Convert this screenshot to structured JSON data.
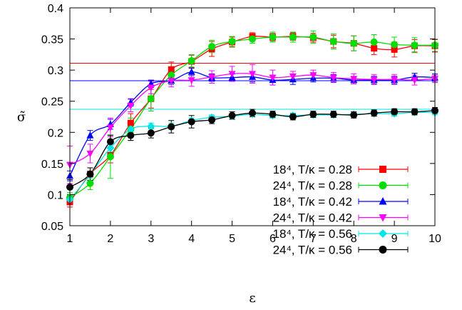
{
  "chart_data": {
    "type": "scatter",
    "xlabel": "ε",
    "ylabel": "σ̃",
    "xlim": [
      1,
      10
    ],
    "ylim": [
      0.05,
      0.4
    ],
    "x_ticks": [
      "1",
      "2",
      "3",
      "4",
      "5",
      "6",
      "7",
      "8",
      "9",
      "10"
    ],
    "y_ticks": [
      "0.05",
      "0.1",
      "0.15",
      "0.2",
      "0.25",
      "0.3",
      "0.35",
      "0.4"
    ],
    "legend_position": "bottom-right",
    "grid": false,
    "horizontal_lines": [
      {
        "y": 0.311,
        "color": "#ff0000"
      },
      {
        "y": 0.283,
        "color": "#0000ff"
      },
      {
        "y": 0.237,
        "color": "#00e5e5"
      }
    ],
    "series": [
      {
        "name": "18⁴, T/κ = 0.28",
        "color": "#ff0000",
        "marker": "square",
        "x": [
          1,
          1.5,
          2,
          2.5,
          3,
          3.5,
          4,
          4.5,
          5,
          5.5,
          6,
          6.5,
          7,
          7.5,
          8,
          8.5,
          9,
          9.5,
          10
        ],
        "y": [
          0.088,
          0.133,
          0.163,
          0.215,
          0.254,
          0.301,
          0.314,
          0.334,
          0.345,
          0.354,
          0.353,
          0.354,
          0.352,
          0.346,
          0.343,
          0.335,
          0.333,
          0.339,
          0.339
        ],
        "err": [
          0.008,
          0.01,
          0.012,
          0.015,
          0.015,
          0.012,
          0.01,
          0.012,
          0.008,
          0.006,
          0.006,
          0.006,
          0.007,
          0.01,
          0.012,
          0.01,
          0.012,
          0.01,
          0.01
        ]
      },
      {
        "name": "24⁴, T/κ = 0.28",
        "color": "#00dd00",
        "marker": "circle",
        "x": [
          1,
          1.5,
          2,
          2.5,
          3,
          3.5,
          4,
          4.5,
          5,
          5.5,
          6,
          6.5,
          7,
          7.5,
          8,
          8.5,
          9,
          9.5,
          10
        ],
        "y": [
          0.095,
          0.118,
          0.161,
          0.205,
          0.254,
          0.292,
          0.315,
          0.338,
          0.346,
          0.35,
          0.353,
          0.353,
          0.353,
          0.346,
          0.343,
          0.345,
          0.341,
          0.34,
          0.34
        ],
        "err": [
          0.008,
          0.01,
          0.035,
          0.018,
          0.02,
          0.012,
          0.01,
          0.01,
          0.008,
          0.007,
          0.008,
          0.008,
          0.01,
          0.012,
          0.012,
          0.012,
          0.012,
          0.012,
          0.01
        ]
      },
      {
        "name": "18⁴, T/κ = 0.42",
        "color": "#0000ff",
        "marker": "triangle-up",
        "x": [
          1,
          1.5,
          2,
          2.5,
          3,
          3.5,
          4,
          4.5,
          5,
          5.5,
          6,
          6.5,
          7,
          7.5,
          8,
          8.5,
          9,
          9.5,
          10
        ],
        "y": [
          0.13,
          0.195,
          0.213,
          0.248,
          0.278,
          0.283,
          0.297,
          0.288,
          0.288,
          0.289,
          0.284,
          0.285,
          0.287,
          0.287,
          0.284,
          0.284,
          0.284,
          0.289,
          0.288
        ],
        "err": [
          0.008,
          0.008,
          0.008,
          0.006,
          0.006,
          0.006,
          0.006,
          0.006,
          0.006,
          0.008,
          0.008,
          0.008,
          0.006,
          0.006,
          0.006,
          0.006,
          0.006,
          0.006,
          0.006
        ]
      },
      {
        "name": "24⁴, T/κ = 0.42",
        "color": "#ff00ff",
        "marker": "triangle-down",
        "x": [
          1,
          1.5,
          2,
          2.5,
          3,
          3.5,
          4,
          4.5,
          5,
          5.5,
          6,
          6.5,
          7,
          7.5,
          8,
          8.5,
          9,
          9.5,
          10
        ],
        "y": [
          0.148,
          0.166,
          0.208,
          0.243,
          0.272,
          0.283,
          0.284,
          0.289,
          0.294,
          0.294,
          0.288,
          0.29,
          0.292,
          0.288,
          0.286,
          0.285,
          0.285,
          0.284,
          0.286
        ],
        "err": [
          0.03,
          0.015,
          0.015,
          0.01,
          0.01,
          0.01,
          0.01,
          0.01,
          0.012,
          0.015,
          0.012,
          0.008,
          0.008,
          0.008,
          0.008,
          0.008,
          0.008,
          0.008,
          0.006
        ]
      },
      {
        "name": "18⁴, T/κ = 0.56",
        "color": "#00e5e5",
        "marker": "diamond",
        "x": [
          1,
          1.5,
          2,
          2.5,
          3,
          3.5,
          4,
          4.5,
          5,
          5.5,
          6,
          6.5,
          7,
          7.5,
          8,
          8.5,
          9,
          9.5,
          10
        ],
        "y": [
          0.092,
          0.132,
          0.175,
          0.205,
          0.21,
          0.21,
          0.219,
          0.224,
          0.226,
          0.229,
          0.227,
          0.227,
          0.228,
          0.228,
          0.229,
          0.23,
          0.23,
          0.232,
          0.232
        ],
        "err": [
          0.008,
          0.006,
          0.006,
          0.005,
          0.005,
          0.005,
          0.004,
          0.004,
          0.004,
          0.004,
          0.004,
          0.004,
          0.004,
          0.004,
          0.004,
          0.004,
          0.004,
          0.004,
          0.004
        ]
      },
      {
        "name": "24⁴, T/κ = 0.56",
        "color": "#000000",
        "marker": "circle",
        "x": [
          1,
          1.5,
          2,
          2.5,
          3,
          3.5,
          4,
          4.5,
          5,
          5.5,
          6,
          6.5,
          7,
          7.5,
          8,
          8.5,
          9,
          9.5,
          10
        ],
        "y": [
          0.112,
          0.133,
          0.185,
          0.195,
          0.199,
          0.209,
          0.217,
          0.22,
          0.227,
          0.231,
          0.229,
          0.225,
          0.229,
          0.229,
          0.228,
          0.231,
          0.233,
          0.233,
          0.235
        ],
        "err": [
          0.012,
          0.01,
          0.01,
          0.008,
          0.008,
          0.01,
          0.01,
          0.006,
          0.006,
          0.006,
          0.005,
          0.005,
          0.005,
          0.005,
          0.005,
          0.005,
          0.005,
          0.005,
          0.005
        ]
      }
    ]
  }
}
